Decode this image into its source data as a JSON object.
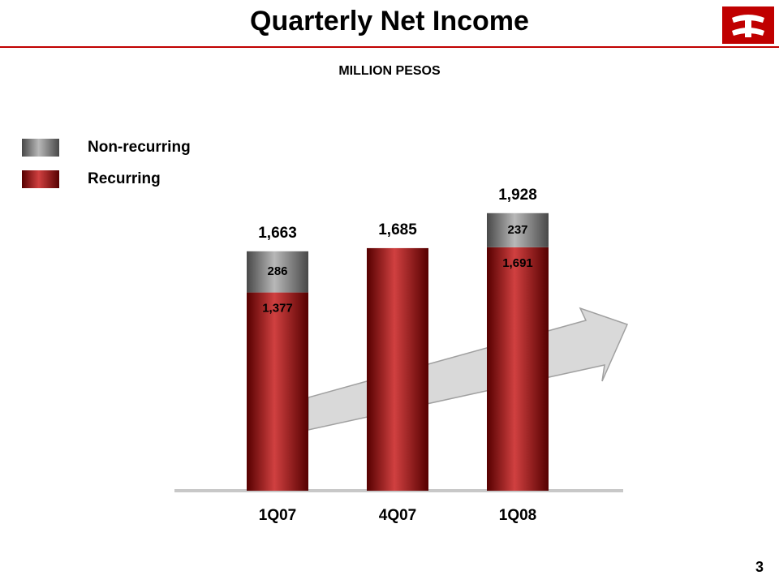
{
  "chart_data": {
    "type": "stacked-bar",
    "title": "Quarterly Net Income",
    "subtitle": "MILLION PESOS",
    "categories": [
      "1Q07",
      "4Q07",
      "1Q08"
    ],
    "series": [
      {
        "name": "Recurring",
        "color": "#c00000",
        "values": [
          1377,
          1685,
          1691
        ],
        "value_labels": [
          "1,377",
          null,
          "1,691"
        ]
      },
      {
        "name": "Non-recurring",
        "color": "#a0a0a0",
        "values": [
          286,
          null,
          237
        ]
      }
    ],
    "totals": [
      1663,
      1685,
      1928
    ],
    "total_labels": [
      "1,663",
      "1,685",
      "1,928"
    ]
  },
  "page_number": "3"
}
